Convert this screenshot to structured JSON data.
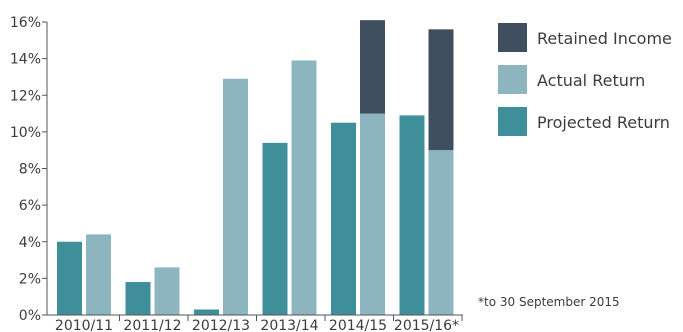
{
  "chart_data": {
    "type": "bar",
    "categories": [
      "2010/11",
      "2011/12",
      "2012/13",
      "2013/14",
      "2014/15",
      "2015/16*"
    ],
    "y_ticks": [
      "0%",
      "2%",
      "4%",
      "6%",
      "8%",
      "10%",
      "12%",
      "14%",
      "16%"
    ],
    "ylim": [
      0,
      16
    ],
    "grid": false,
    "legend_position": "right",
    "series": [
      {
        "name": "Projected Return",
        "color": "#3f8f9b",
        "values": [
          4.0,
          1.8,
          0.3,
          9.4,
          10.5,
          10.9
        ]
      },
      {
        "name": "Actual Return",
        "color": "#8cb5bf",
        "values": [
          4.4,
          2.6,
          12.9,
          13.9,
          11.0,
          9.0
        ]
      },
      {
        "name": "Retained Income",
        "color": "#404f60",
        "values": [
          0,
          0,
          0,
          0,
          5.1,
          6.6
        ]
      }
    ],
    "legend_order": [
      "Retained Income",
      "Actual Return",
      "Projected Return"
    ],
    "footnote": "*to 30 September 2015"
  }
}
